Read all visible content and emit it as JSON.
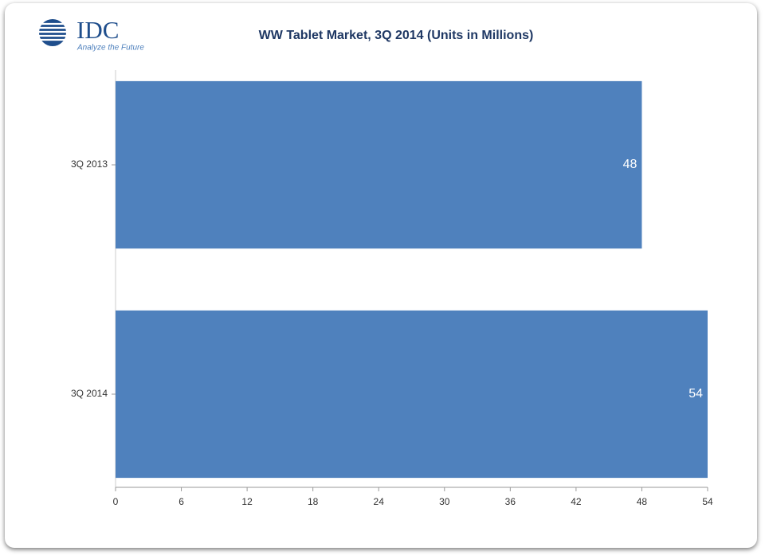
{
  "logo": {
    "text": "IDC",
    "tagline": "Analyze the Future"
  },
  "chart_data": {
    "type": "hbar",
    "title": "WW Tablet Market, 3Q 2014 (Units in Millions)",
    "categories": [
      "3Q 2013",
      "3Q 2014"
    ],
    "values": [
      48,
      54
    ],
    "color": "#4f81bd",
    "xlim": [
      0,
      54
    ],
    "xticks": [
      0,
      6,
      12,
      18,
      24,
      30,
      36,
      42,
      48,
      54
    ],
    "grid": false
  }
}
